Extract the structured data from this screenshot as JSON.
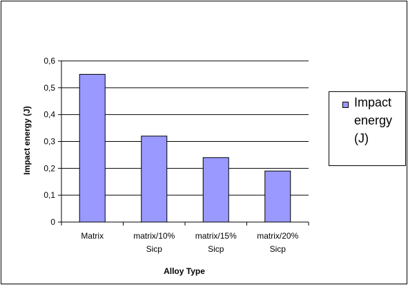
{
  "chart_data": {
    "type": "bar",
    "categories": [
      "Matrix",
      "matrix/10%\nSicp",
      "matrix/15%\nSicp",
      "matrix/20%\nSicp"
    ],
    "series": [
      {
        "name": "Impact energy (J)",
        "values": [
          0.55,
          0.32,
          0.24,
          0.19
        ]
      }
    ],
    "xlabel": "Alloy Type",
    "ylabel": "Impact energy (J)",
    "ylim": [
      0,
      0.6
    ],
    "yticks": [
      "0",
      "0,1",
      "0,2",
      "0,3",
      "0,4",
      "0,5",
      "0,6"
    ],
    "grid": true,
    "legend": "right",
    "colors": {
      "bar": "#9999ff",
      "grid": "#000000",
      "plot_bg": "#ffffff"
    }
  }
}
